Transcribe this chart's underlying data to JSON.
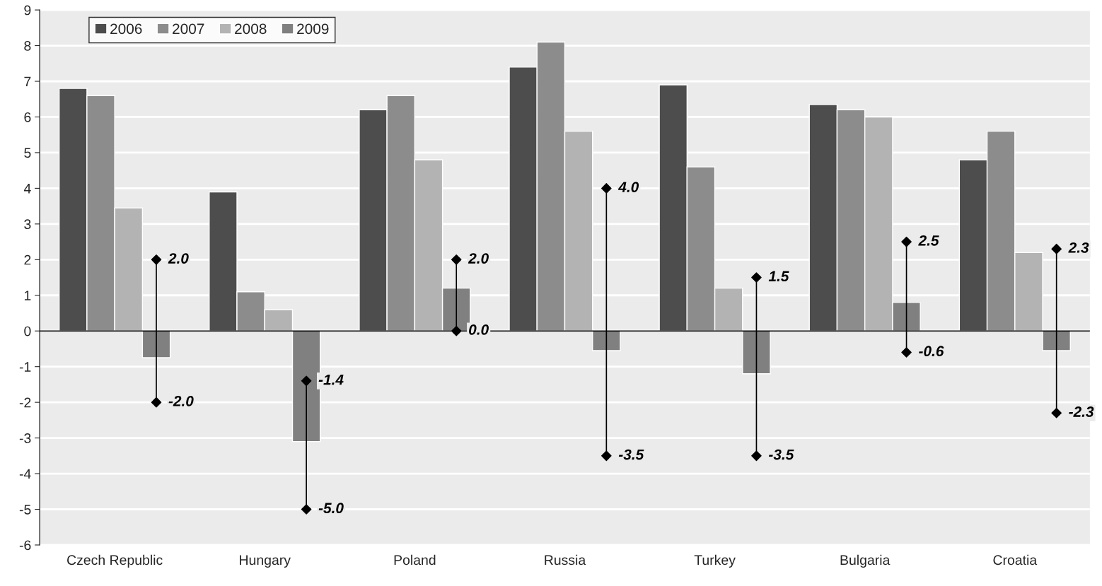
{
  "chart_data": {
    "type": "bar",
    "categories": [
      "Czech Republic",
      "Hungary",
      "Poland",
      "Russia",
      "Turkey",
      "Bulgaria",
      "Croatia"
    ],
    "series": [
      {
        "name": "2006",
        "color": "#4d4d4d",
        "values": [
          6.8,
          3.9,
          6.2,
          7.4,
          6.9,
          6.35,
          4.8
        ]
      },
      {
        "name": "2007",
        "color": "#8c8c8c",
        "values": [
          6.6,
          1.1,
          6.6,
          8.1,
          4.6,
          6.2,
          5.6
        ]
      },
      {
        "name": "2008",
        "color": "#b3b3b3",
        "values": [
          3.45,
          0.6,
          4.8,
          5.6,
          1.2,
          6.0,
          2.2
        ]
      },
      {
        "name": "2009",
        "color": "#808080",
        "values": [
          -0.75,
          -3.1,
          1.2,
          -0.55,
          -1.2,
          0.8,
          -0.55
        ]
      },
      {
        "type": "scatter",
        "color": "#000000",
        "marker": "diamond",
        "values": [
          2.0,
          -1.4,
          2.0,
          4.0,
          1.5,
          2.5,
          2.3
        ],
        "value_labels": [
          "2.0",
          "-1.4",
          "2.0",
          "4.0",
          "1.5",
          "2.5",
          "2.3"
        ]
      },
      {
        "type": "scatter",
        "color": "#000000",
        "marker": "diamond",
        "values": [
          -2.0,
          -5.0,
          0.0,
          -3.5,
          -3.5,
          -0.6,
          -2.3
        ],
        "value_labels": [
          "-2.0",
          "-5.0",
          "0.0",
          "-3.5",
          "-3.5",
          "-0.6",
          "-2.3"
        ]
      }
    ],
    "ylim": [
      -6,
      9
    ],
    "yticks": [
      -6,
      -5,
      -4,
      -3,
      -2,
      -1,
      0,
      1,
      2,
      3,
      4,
      5,
      6,
      7,
      8,
      9
    ],
    "ref_lines": [
      {
        "axis": "y",
        "value": 0,
        "color": "#000000"
      }
    ],
    "grid": "y",
    "legend": "top left"
  }
}
